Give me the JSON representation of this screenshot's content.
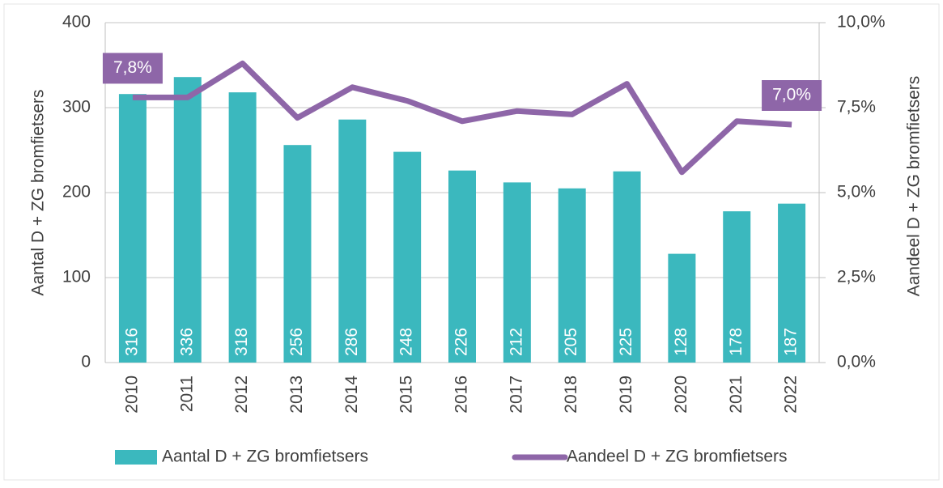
{
  "chart_data": {
    "type": "bar",
    "categories": [
      "2010",
      "2011",
      "2012",
      "2013",
      "2014",
      "2015",
      "2016",
      "2017",
      "2018",
      "2019",
      "2020",
      "2021",
      "2022"
    ],
    "series": [
      {
        "name": "Aantal D + ZG bromfietsers",
        "type": "bar",
        "color": "#3bb8be",
        "values": [
          316,
          336,
          318,
          256,
          286,
          248,
          226,
          212,
          205,
          225,
          128,
          178,
          187
        ]
      },
      {
        "name": "Aandeel D + ZG bromfietsers",
        "type": "line",
        "axis": "y2",
        "color": "#8e66a8",
        "values": [
          7.8,
          7.8,
          8.8,
          7.2,
          8.1,
          7.7,
          7.1,
          7.4,
          7.3,
          8.2,
          5.6,
          7.1,
          7.0
        ],
        "value_labels": [
          "7,8%",
          null,
          null,
          null,
          null,
          null,
          null,
          null,
          null,
          null,
          null,
          null,
          "7,0%"
        ]
      }
    ],
    "ylabel": "Aantal D + ZG bromfietsers",
    "y2label": "Aandeel D + ZG bromfietsers",
    "ylim": [
      0,
      400
    ],
    "yticks": [
      0,
      100,
      200,
      300,
      400
    ],
    "y2lim": [
      0,
      10
    ],
    "y2ticks": [
      {
        "value": 0,
        "label": "0,0%"
      },
      {
        "value": 2.5,
        "label": "2,5%"
      },
      {
        "value": 5,
        "label": "5,0%"
      },
      {
        "value": 7.5,
        "label": "7,5%"
      },
      {
        "value": 10,
        "label": "10,0%"
      }
    ],
    "grid": true,
    "legend": "bottom"
  }
}
